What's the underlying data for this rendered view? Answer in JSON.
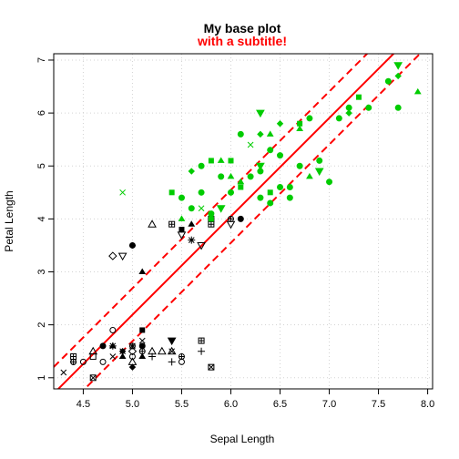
{
  "chart_data": {
    "type": "scatter",
    "title": "My base plot",
    "subtitle": "with a subtitle!",
    "xlabel": "Sepal Length",
    "ylabel": "Petal Length",
    "xlim": [
      4.2,
      8.05
    ],
    "ylim": [
      0.79,
      7.12
    ],
    "xticks": [
      "4.5",
      "5.0",
      "5.5",
      "6.0",
      "6.5",
      "7.0",
      "7.5",
      "8.0"
    ],
    "yticks": [
      "1",
      "2",
      "3",
      "4",
      "5",
      "6",
      "7"
    ],
    "grid": true,
    "colors": {
      "title": "#000000",
      "subtitle": "#ff0000",
      "regression": "#ff0000",
      "group_black": "#000000",
      "group_green": "#00cc00",
      "grid": "#d3d3d3"
    },
    "regression": {
      "intercept": -7.1,
      "slope": 1.858
    },
    "confidence_band": {
      "offset": 0.5
    },
    "series": [
      {
        "group": "black",
        "points": [
          [
            4.3,
            1.1,
            "x"
          ],
          [
            4.4,
            1.3,
            "o"
          ],
          [
            4.4,
            1.4,
            "sq+"
          ],
          [
            4.4,
            1.3,
            "circ+"
          ],
          [
            4.5,
            1.3,
            "o"
          ],
          [
            4.6,
            1.0,
            "sqx"
          ],
          [
            4.6,
            1.4,
            "sq"
          ],
          [
            4.6,
            1.5,
            "tri"
          ],
          [
            4.7,
            1.3,
            "o"
          ],
          [
            4.7,
            1.6,
            "dot"
          ],
          [
            4.8,
            1.6,
            "tri-f"
          ],
          [
            4.8,
            1.4,
            "x"
          ],
          [
            4.8,
            1.9,
            "o"
          ],
          [
            4.8,
            1.6,
            "star"
          ],
          [
            4.9,
            1.4,
            "tri-f"
          ],
          [
            4.9,
            1.5,
            "diamond-f"
          ],
          [
            4.9,
            1.5,
            "x"
          ],
          [
            5.0,
            1.4,
            "o"
          ],
          [
            5.0,
            1.5,
            "diamond"
          ],
          [
            5.0,
            1.6,
            "circ+"
          ],
          [
            5.0,
            1.2,
            "diamond-f"
          ],
          [
            5.0,
            1.3,
            "tri"
          ],
          [
            5.0,
            1.6,
            "x"
          ],
          [
            5.1,
            1.4,
            "tri-f"
          ],
          [
            5.1,
            1.5,
            "circ+"
          ],
          [
            5.1,
            1.9,
            "sq-f"
          ],
          [
            5.1,
            1.7,
            "x"
          ],
          [
            5.1,
            1.6,
            "dot"
          ],
          [
            5.2,
            1.5,
            "tri"
          ],
          [
            5.2,
            1.4,
            "plus"
          ],
          [
            5.3,
            1.5,
            "tri"
          ],
          [
            5.4,
            1.7,
            "tri-down-f"
          ],
          [
            5.4,
            1.5,
            "tri"
          ],
          [
            5.4,
            1.3,
            "plus"
          ],
          [
            5.4,
            1.5,
            "x"
          ],
          [
            5.5,
            1.4,
            "circ+"
          ],
          [
            5.5,
            1.3,
            "o"
          ],
          [
            5.7,
            1.5,
            "plus"
          ],
          [
            5.7,
            1.7,
            "sq+"
          ],
          [
            5.8,
            1.2,
            "sqx"
          ],
          [
            4.9,
            3.3,
            "tri-down"
          ],
          [
            4.8,
            3.3,
            "diamond"
          ],
          [
            5.0,
            3.5,
            "diamond-f"
          ],
          [
            5.1,
            3.0,
            "tri-f"
          ],
          [
            5.0,
            3.5,
            "dot"
          ],
          [
            5.2,
            3.9,
            "tri"
          ],
          [
            5.4,
            3.9,
            "sq+"
          ],
          [
            5.5,
            3.8,
            "sq-f"
          ],
          [
            5.5,
            3.7,
            "tri-down"
          ],
          [
            5.6,
            3.6,
            "star"
          ],
          [
            5.6,
            3.9,
            "tri-f"
          ],
          [
            5.7,
            3.5,
            "tri-down"
          ],
          [
            5.8,
            3.9,
            "sq+"
          ],
          [
            5.8,
            4.0,
            "sq"
          ],
          [
            6.0,
            3.9,
            "tri-down"
          ],
          [
            6.0,
            4.0,
            "circ+"
          ],
          [
            6.1,
            4.0,
            "dot"
          ]
        ]
      },
      {
        "group": "green",
        "points": [
          [
            4.9,
            4.5,
            "x"
          ],
          [
            5.4,
            4.5,
            "sq-f"
          ],
          [
            5.5,
            4.4,
            "dot"
          ],
          [
            5.5,
            4.0,
            "tri-f"
          ],
          [
            5.6,
            4.2,
            "dot"
          ],
          [
            5.6,
            4.9,
            "diamond-f"
          ],
          [
            5.7,
            4.2,
            "x"
          ],
          [
            5.7,
            4.5,
            "dot"
          ],
          [
            5.7,
            5.0,
            "dot"
          ],
          [
            5.8,
            5.1,
            "sq-f"
          ],
          [
            5.8,
            4.1,
            "dot"
          ],
          [
            5.8,
            4.0,
            "sq-f"
          ],
          [
            5.9,
            4.8,
            "dot"
          ],
          [
            5.9,
            5.1,
            "tri-f"
          ],
          [
            5.9,
            4.2,
            "tri-down-f"
          ],
          [
            6.0,
            4.5,
            "dot"
          ],
          [
            6.0,
            5.1,
            "sq-f"
          ],
          [
            6.0,
            4.8,
            "tri-f"
          ],
          [
            6.1,
            4.7,
            "tri-f"
          ],
          [
            6.1,
            4.6,
            "sq-f"
          ],
          [
            6.1,
            5.6,
            "dot"
          ],
          [
            6.2,
            4.8,
            "dot"
          ],
          [
            6.2,
            5.4,
            "x"
          ],
          [
            6.3,
            4.9,
            "dot"
          ],
          [
            6.3,
            5.0,
            "tri-down-f"
          ],
          [
            6.3,
            6.0,
            "tri-down-f"
          ],
          [
            6.3,
            5.6,
            "diamond-f"
          ],
          [
            6.3,
            4.4,
            "dot"
          ],
          [
            6.4,
            4.5,
            "sq-f"
          ],
          [
            6.4,
            5.3,
            "dot"
          ],
          [
            6.4,
            5.6,
            "tri-f"
          ],
          [
            6.4,
            4.3,
            "dot"
          ],
          [
            6.5,
            4.6,
            "dot"
          ],
          [
            6.5,
            5.8,
            "diamond-f"
          ],
          [
            6.5,
            5.2,
            "dot"
          ],
          [
            6.6,
            4.6,
            "dot"
          ],
          [
            6.6,
            4.4,
            "dot"
          ],
          [
            6.7,
            5.0,
            "dot"
          ],
          [
            6.7,
            5.7,
            "tri-f"
          ],
          [
            6.7,
            5.8,
            "sq-f"
          ],
          [
            6.8,
            4.8,
            "tri-f"
          ],
          [
            6.8,
            5.9,
            "dot"
          ],
          [
            6.9,
            4.9,
            "tri-down-f"
          ],
          [
            6.9,
            5.1,
            "dot"
          ],
          [
            7.0,
            4.7,
            "dot"
          ],
          [
            7.1,
            5.9,
            "dot"
          ],
          [
            7.2,
            6.1,
            "dot"
          ],
          [
            7.2,
            6.0,
            "diamond-f"
          ],
          [
            7.3,
            6.3,
            "sq-f"
          ],
          [
            7.4,
            6.1,
            "dot"
          ],
          [
            7.6,
            6.6,
            "dot"
          ],
          [
            7.7,
            6.7,
            "diamond-f"
          ],
          [
            7.7,
            6.9,
            "tri-down-f"
          ],
          [
            7.7,
            6.1,
            "dot"
          ],
          [
            7.9,
            6.4,
            "tri-f"
          ]
        ]
      }
    ]
  }
}
